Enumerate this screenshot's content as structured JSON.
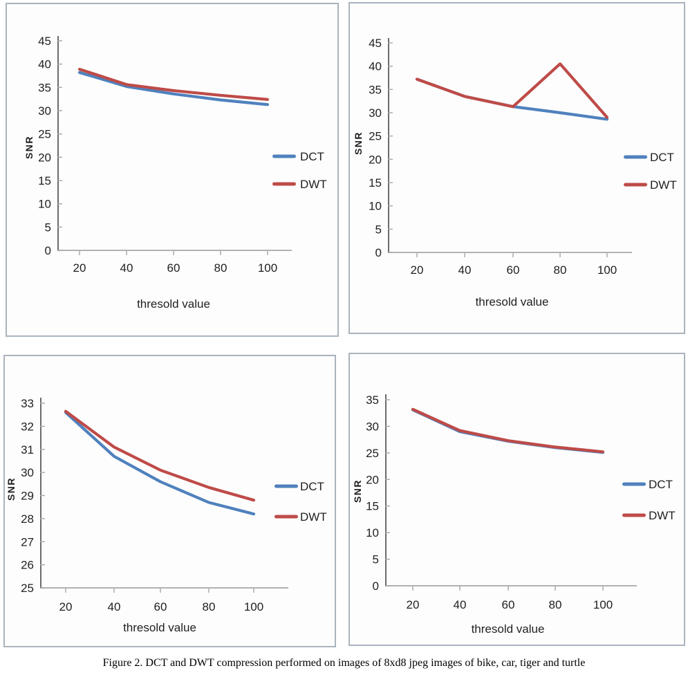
{
  "figure": {
    "caption": "Figure 2. DCT and DWT compression performed on images of 8xd8 jpeg images of bike, car, tiger and turtle"
  },
  "colors": {
    "dct_line": "#4F81BD",
    "dwt_line": "#BE4B48",
    "y_axis": "#595959",
    "x_axis": "#A6A6A6",
    "tick": "#A6A6A6",
    "panel_border": "#A9B3BD",
    "text": "#1F1F1F"
  },
  "chart_data": [
    {
      "type": "line",
      "panel": "top-left",
      "xlabel": "thresold value",
      "ylabel": "SNR",
      "x": [
        20,
        40,
        60,
        80,
        100
      ],
      "ylim": [
        0,
        45
      ],
      "ystep": 5,
      "grid": false,
      "legend_position": "right",
      "series": [
        {
          "name": "DCT",
          "color": "#4F81BD",
          "values": [
            38.2,
            35.2,
            33.6,
            32.3,
            31.3
          ]
        },
        {
          "name": "DWT",
          "color": "#BE4B48",
          "values": [
            38.9,
            35.6,
            34.3,
            33.3,
            32.4
          ]
        }
      ]
    },
    {
      "type": "line",
      "panel": "top-right",
      "xlabel": "thresold value",
      "ylabel": "SNR",
      "x": [
        20,
        40,
        60,
        80,
        100
      ],
      "ylim": [
        0,
        45
      ],
      "ystep": 5,
      "grid": false,
      "legend_position": "right",
      "series": [
        {
          "name": "DCT",
          "color": "#4F81BD",
          "values": [
            37.2,
            33.5,
            31.3,
            30.0,
            28.6
          ]
        },
        {
          "name": "DWT",
          "color": "#BE4B48",
          "values": [
            37.2,
            33.5,
            31.3,
            40.5,
            29.0
          ]
        }
      ]
    },
    {
      "type": "line",
      "panel": "bottom-left",
      "xlabel": "thresold value",
      "ylabel": "SNR",
      "x": [
        20,
        40,
        60,
        80,
        100
      ],
      "ylim": [
        25,
        33
      ],
      "ystep": 1,
      "grid": false,
      "legend_position": "right",
      "series": [
        {
          "name": "DCT",
          "color": "#4F81BD",
          "values": [
            32.6,
            30.7,
            29.6,
            28.7,
            28.2
          ]
        },
        {
          "name": "DWT",
          "color": "#BE4B48",
          "values": [
            32.65,
            31.1,
            30.1,
            29.35,
            28.8
          ]
        }
      ]
    },
    {
      "type": "line",
      "panel": "bottom-right",
      "xlabel": "thresold value",
      "ylabel": "SNR",
      "x": [
        20,
        40,
        60,
        80,
        100
      ],
      "ylim": [
        0,
        35
      ],
      "ystep": 5,
      "grid": false,
      "legend_position": "right",
      "series": [
        {
          "name": "DCT",
          "color": "#4F81BD",
          "values": [
            33.1,
            29.0,
            27.2,
            26.0,
            25.1
          ]
        },
        {
          "name": "DWT",
          "color": "#BE4B48",
          "values": [
            33.2,
            29.2,
            27.3,
            26.1,
            25.2
          ]
        }
      ]
    }
  ]
}
